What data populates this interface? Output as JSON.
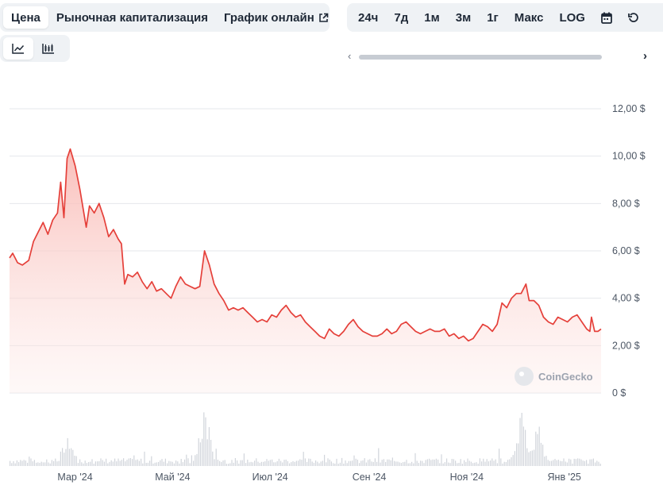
{
  "tabs": {
    "price": "Цена",
    "market_cap": "Рыночная капитализация",
    "live_chart": "График онлайн"
  },
  "ranges": [
    "24ч",
    "7д",
    "1м",
    "3м",
    "1г",
    "Макс",
    "LOG"
  ],
  "watermark": "CoinGecko",
  "colors": {
    "line": "#e5403a",
    "fill": "#fbd0cd",
    "grid": "#e5e7eb",
    "volume": "#d1d5db"
  },
  "icons": [
    "line-chart-icon",
    "candlestick-icon",
    "calendar-icon",
    "reset-icon",
    "external-link-icon",
    "chevron-left-icon",
    "chevron-right-icon"
  ],
  "chart_data": {
    "type": "area",
    "y_unit": "$",
    "ylim": [
      0,
      12
    ],
    "y_ticks": [
      "0 $",
      "2,00 $",
      "4,00 $",
      "6,00 $",
      "8,00 $",
      "10,00 $",
      "12,00 $"
    ],
    "y_tick_values": [
      0,
      2,
      4,
      6,
      8,
      10,
      12
    ],
    "x_tick_labels": [
      "Мар '24",
      "Май '24",
      "Июл '24",
      "Сен '24",
      "Ноя '24",
      "Янв '25"
    ],
    "x_tick_dates": [
      "2024-03-01",
      "2024-05-01",
      "2024-07-01",
      "2024-09-01",
      "2024-11-01",
      "2025-01-01"
    ],
    "x_range": [
      "2024-01-20",
      "2025-01-24"
    ],
    "grid": true,
    "series": [
      {
        "values": [
          [
            "2024-01-20",
            5.7
          ],
          [
            "2024-01-22",
            5.9
          ],
          [
            "2024-01-25",
            5.5
          ],
          [
            "2024-01-28",
            5.4
          ],
          [
            "2024-02-01",
            5.6
          ],
          [
            "2024-02-04",
            6.4
          ],
          [
            "2024-02-07",
            6.8
          ],
          [
            "2024-02-10",
            7.2
          ],
          [
            "2024-02-13",
            6.7
          ],
          [
            "2024-02-16",
            7.3
          ],
          [
            "2024-02-19",
            7.6
          ],
          [
            "2024-02-21",
            8.9
          ],
          [
            "2024-02-23",
            7.4
          ],
          [
            "2024-02-25",
            9.9
          ],
          [
            "2024-02-27",
            10.3
          ],
          [
            "2024-03-01",
            9.6
          ],
          [
            "2024-03-04",
            8.6
          ],
          [
            "2024-03-06",
            7.8
          ],
          [
            "2024-03-08",
            7.0
          ],
          [
            "2024-03-10",
            7.9
          ],
          [
            "2024-03-13",
            7.6
          ],
          [
            "2024-03-16",
            8.0
          ],
          [
            "2024-03-19",
            7.4
          ],
          [
            "2024-03-22",
            6.6
          ],
          [
            "2024-03-25",
            6.9
          ],
          [
            "2024-03-28",
            6.5
          ],
          [
            "2024-03-30",
            6.3
          ],
          [
            "2024-04-01",
            4.6
          ],
          [
            "2024-04-03",
            5.0
          ],
          [
            "2024-04-06",
            4.9
          ],
          [
            "2024-04-09",
            5.1
          ],
          [
            "2024-04-12",
            4.7
          ],
          [
            "2024-04-15",
            4.4
          ],
          [
            "2024-04-18",
            4.7
          ],
          [
            "2024-04-21",
            4.3
          ],
          [
            "2024-04-24",
            4.4
          ],
          [
            "2024-04-27",
            4.2
          ],
          [
            "2024-04-30",
            4.0
          ],
          [
            "2024-05-03",
            4.5
          ],
          [
            "2024-05-06",
            4.9
          ],
          [
            "2024-05-09",
            4.6
          ],
          [
            "2024-05-12",
            4.5
          ],
          [
            "2024-05-15",
            4.4
          ],
          [
            "2024-05-18",
            4.5
          ],
          [
            "2024-05-21",
            6.0
          ],
          [
            "2024-05-24",
            5.4
          ],
          [
            "2024-05-27",
            4.6
          ],
          [
            "2024-05-30",
            4.2
          ],
          [
            "2024-06-02",
            3.9
          ],
          [
            "2024-06-05",
            3.5
          ],
          [
            "2024-06-08",
            3.6
          ],
          [
            "2024-06-11",
            3.5
          ],
          [
            "2024-06-14",
            3.6
          ],
          [
            "2024-06-17",
            3.4
          ],
          [
            "2024-06-20",
            3.2
          ],
          [
            "2024-06-23",
            3.0
          ],
          [
            "2024-06-26",
            3.1
          ],
          [
            "2024-06-29",
            3.0
          ],
          [
            "2024-07-02",
            3.3
          ],
          [
            "2024-07-05",
            3.2
          ],
          [
            "2024-07-08",
            3.5
          ],
          [
            "2024-07-11",
            3.7
          ],
          [
            "2024-07-14",
            3.4
          ],
          [
            "2024-07-17",
            3.2
          ],
          [
            "2024-07-20",
            3.3
          ],
          [
            "2024-07-23",
            3.0
          ],
          [
            "2024-07-26",
            2.8
          ],
          [
            "2024-07-29",
            2.6
          ],
          [
            "2024-08-01",
            2.4
          ],
          [
            "2024-08-04",
            2.3
          ],
          [
            "2024-08-07",
            2.7
          ],
          [
            "2024-08-10",
            2.5
          ],
          [
            "2024-08-13",
            2.4
          ],
          [
            "2024-08-16",
            2.6
          ],
          [
            "2024-08-19",
            2.9
          ],
          [
            "2024-08-22",
            3.1
          ],
          [
            "2024-08-25",
            2.8
          ],
          [
            "2024-08-28",
            2.6
          ],
          [
            "2024-08-31",
            2.5
          ],
          [
            "2024-09-03",
            2.4
          ],
          [
            "2024-09-06",
            2.4
          ],
          [
            "2024-09-09",
            2.5
          ],
          [
            "2024-09-12",
            2.7
          ],
          [
            "2024-09-15",
            2.5
          ],
          [
            "2024-09-18",
            2.6
          ],
          [
            "2024-09-21",
            2.9
          ],
          [
            "2024-09-24",
            3.0
          ],
          [
            "2024-09-27",
            2.8
          ],
          [
            "2024-09-30",
            2.6
          ],
          [
            "2024-10-03",
            2.5
          ],
          [
            "2024-10-06",
            2.6
          ],
          [
            "2024-10-09",
            2.7
          ],
          [
            "2024-10-12",
            2.6
          ],
          [
            "2024-10-15",
            2.6
          ],
          [
            "2024-10-18",
            2.7
          ],
          [
            "2024-10-21",
            2.4
          ],
          [
            "2024-10-24",
            2.5
          ],
          [
            "2024-10-27",
            2.3
          ],
          [
            "2024-10-30",
            2.4
          ],
          [
            "2024-11-02",
            2.2
          ],
          [
            "2024-11-05",
            2.3
          ],
          [
            "2024-11-08",
            2.6
          ],
          [
            "2024-11-11",
            2.9
          ],
          [
            "2024-11-14",
            2.8
          ],
          [
            "2024-11-17",
            2.6
          ],
          [
            "2024-11-20",
            2.9
          ],
          [
            "2024-11-23",
            3.8
          ],
          [
            "2024-11-26",
            3.6
          ],
          [
            "2024-11-29",
            4.0
          ],
          [
            "2024-12-02",
            4.2
          ],
          [
            "2024-12-05",
            4.2
          ],
          [
            "2024-12-08",
            4.6
          ],
          [
            "2024-12-10",
            3.9
          ],
          [
            "2024-12-13",
            3.9
          ],
          [
            "2024-12-16",
            3.7
          ],
          [
            "2024-12-19",
            3.2
          ],
          [
            "2024-12-22",
            3.0
          ],
          [
            "2024-12-25",
            2.9
          ],
          [
            "2024-12-28",
            3.2
          ],
          [
            "2024-12-31",
            3.1
          ],
          [
            "2025-01-03",
            3.0
          ],
          [
            "2025-01-06",
            3.2
          ],
          [
            "2025-01-09",
            3.3
          ],
          [
            "2025-01-12",
            3.0
          ],
          [
            "2025-01-15",
            2.7
          ],
          [
            "2025-01-17",
            2.6
          ],
          [
            "2025-01-18",
            3.2
          ],
          [
            "2025-01-20",
            2.6
          ],
          [
            "2025-01-22",
            2.6
          ],
          [
            "2025-01-24",
            2.7
          ]
        ]
      }
    ],
    "volume_note_peaks": [
      [
        "2024-05-21",
        1.0
      ],
      [
        "2024-12-05",
        0.82
      ],
      [
        "2024-02-25",
        0.45
      ],
      [
        "2024-12-15",
        0.6
      ]
    ]
  }
}
